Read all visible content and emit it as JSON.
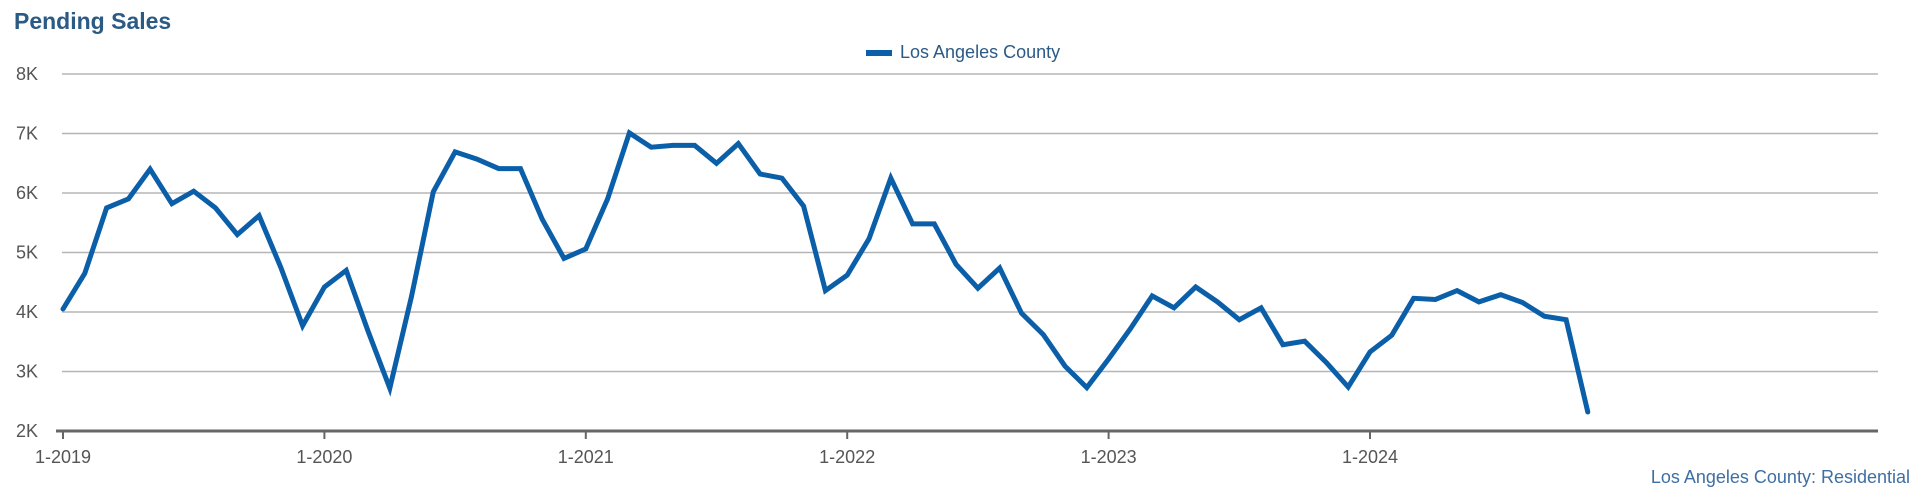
{
  "chart_data": {
    "type": "line",
    "title": "Pending Sales",
    "source_label": "Los Angeles County: Residential",
    "legend": {
      "placement": "top-center",
      "entries": [
        "Los Angeles County"
      ]
    },
    "ylim": [
      2000,
      8000
    ],
    "yticks": [
      2000,
      3000,
      4000,
      5000,
      6000,
      7000,
      8000
    ],
    "ytick_labels": [
      "2K",
      "3K",
      "4K",
      "5K",
      "6K",
      "7K",
      "8K"
    ],
    "xtick_labels": [
      "1-2019",
      "1-2020",
      "1-2021",
      "1-2022",
      "1-2023",
      "1-2024"
    ],
    "xtick_indices": [
      0,
      12,
      24,
      36,
      48,
      60
    ],
    "grid": true,
    "series": [
      {
        "name": "Los Angeles County",
        "color": "#0b5ea8",
        "values": [
          4050,
          4650,
          5750,
          5900,
          6400,
          5820,
          6030,
          5750,
          5300,
          5620,
          4750,
          3770,
          4420,
          4700,
          3680,
          2720,
          4260,
          6020,
          6690,
          6570,
          6410,
          6410,
          5560,
          4900,
          5060,
          5900,
          7010,
          6770,
          6800,
          6800,
          6500,
          6830,
          6320,
          6250,
          5780,
          4360,
          4620,
          5230,
          6250,
          5480,
          5480,
          4800,
          4400,
          4740,
          3980,
          3620,
          3090,
          2730,
          3210,
          3720,
          4270,
          4070,
          4420,
          4170,
          3870,
          4070,
          3450,
          3510,
          3150,
          2740,
          3330,
          3610,
          4230,
          4210,
          4360,
          4170,
          4290,
          4160,
          3930,
          3870,
          2320
        ]
      }
    ]
  }
}
